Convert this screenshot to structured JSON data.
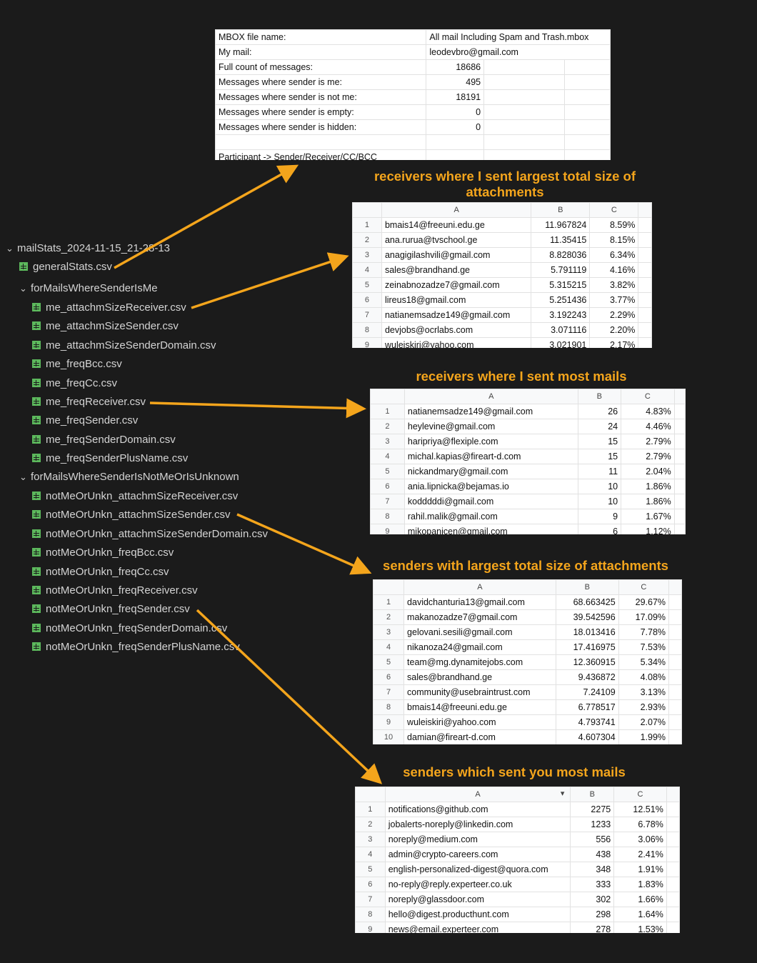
{
  "tree": {
    "root": "mailStats_2024-11-15_21-28-13",
    "root_file": "generalStats.csv",
    "folder1": "forMailsWhereSenderIsMe",
    "folder1_files": [
      "me_attachmSizeReceiver.csv",
      "me_attachmSizeSender.csv",
      "me_attachmSizeSenderDomain.csv",
      "me_freqBcc.csv",
      "me_freqCc.csv",
      "me_freqReceiver.csv",
      "me_freqSender.csv",
      "me_freqSenderDomain.csv",
      "me_freqSenderPlusName.csv"
    ],
    "folder2": "forMailsWhereSenderIsNotMeOrIsUnknown",
    "folder2_files": [
      "notMeOrUnkn_attachmSizeReceiver.csv",
      "notMeOrUnkn_attachmSizeSender.csv",
      "notMeOrUnkn_attachmSizeSenderDomain.csv",
      "notMeOrUnkn_freqBcc.csv",
      "notMeOrUnkn_freqCc.csv",
      "notMeOrUnkn_freqReceiver.csv",
      "notMeOrUnkn_freqSender.csv",
      "notMeOrUnkn_freqSenderDomain.csv",
      "notMeOrUnkn_freqSenderPlusName.csv"
    ]
  },
  "general": {
    "rows": [
      [
        "MBOX file name:",
        "All mail Including Spam and Trash.mbox"
      ],
      [
        "My mail:",
        "leodevbro@gmail.com"
      ],
      [
        "Full count of messages:",
        "18686"
      ],
      [
        "Messages where sender is me:",
        "495"
      ],
      [
        "Messages where sender is not me:",
        "18191"
      ],
      [
        "Messages where sender is empty:",
        "0"
      ],
      [
        "Messages where sender is hidden:",
        "0"
      ],
      [
        "",
        ""
      ],
      [
        "Participant -> Sender/Receiver/CC/BCC",
        ""
      ]
    ]
  },
  "sheets": {
    "s1": {
      "caption": "receivers where I sent largest total size of attachments",
      "headers": [
        "A",
        "B",
        "C"
      ],
      "rows": [
        [
          "1",
          "bmais14@freeuni.edu.ge",
          "11.967824",
          "8.59%"
        ],
        [
          "2",
          "ana.rurua@tvschool.ge",
          "11.35415",
          "8.15%"
        ],
        [
          "3",
          "anagigilashvili@gmail.com",
          "8.828036",
          "6.34%"
        ],
        [
          "4",
          "sales@brandhand.ge",
          "5.791119",
          "4.16%"
        ],
        [
          "5",
          "zeinabnozadze7@gmail.com",
          "5.315215",
          "3.82%"
        ],
        [
          "6",
          "lireus18@gmail.com",
          "5.251436",
          "3.77%"
        ],
        [
          "7",
          "natianemsadze149@gmail.com",
          "3.192243",
          "2.29%"
        ],
        [
          "8",
          "devjobs@ocrlabs.com",
          "3.071116",
          "2.20%"
        ],
        [
          "9",
          "wuleiskiri@yahoo.com",
          "3.021901",
          "2.17%"
        ]
      ]
    },
    "s2": {
      "caption": "receivers where I sent most mails",
      "headers": [
        "A",
        "B",
        "C"
      ],
      "rows": [
        [
          "1",
          "natianemsadze149@gmail.com",
          "26",
          "4.83%"
        ],
        [
          "2",
          "heylevine@gmail.com",
          "24",
          "4.46%"
        ],
        [
          "3",
          "haripriya@flexiple.com",
          "15",
          "2.79%"
        ],
        [
          "4",
          "michal.kapias@fireart-d.com",
          "15",
          "2.79%"
        ],
        [
          "5",
          "nickandmary@gmail.com",
          "11",
          "2.04%"
        ],
        [
          "6",
          "ania.lipnicka@bejamas.io",
          "10",
          "1.86%"
        ],
        [
          "7",
          "kodddddi@gmail.com",
          "10",
          "1.86%"
        ],
        [
          "8",
          "rahil.malik@gmail.com",
          "9",
          "1.67%"
        ],
        [
          "9",
          "mikopanicen@gmail.com",
          "6",
          "1.12%"
        ]
      ]
    },
    "s3": {
      "caption": "senders with largest total size of attachments",
      "headers": [
        "A",
        "B",
        "C"
      ],
      "rows": [
        [
          "1",
          "davidchanturia13@gmail.com",
          "68.663425",
          "29.67%"
        ],
        [
          "2",
          "makanozadze7@gmail.com",
          "39.542596",
          "17.09%"
        ],
        [
          "3",
          "gelovani.sesili@gmail.com",
          "18.013416",
          "7.78%"
        ],
        [
          "4",
          "nikanoza24@gmail.com",
          "17.416975",
          "7.53%"
        ],
        [
          "5",
          "team@mg.dynamitejobs.com",
          "12.360915",
          "5.34%"
        ],
        [
          "6",
          "sales@brandhand.ge",
          "9.436872",
          "4.08%"
        ],
        [
          "7",
          "community@usebraintrust.com",
          "7.24109",
          "3.13%"
        ],
        [
          "8",
          "bmais14@freeuni.edu.ge",
          "6.778517",
          "2.93%"
        ],
        [
          "9",
          "wuleiskiri@yahoo.com",
          "4.793741",
          "2.07%"
        ],
        [
          "10",
          "damian@fireart-d.com",
          "4.607304",
          "1.99%"
        ]
      ]
    },
    "s4": {
      "caption": "senders which sent you most mails",
      "headers": [
        "A",
        "B",
        "C"
      ],
      "rows": [
        [
          "1",
          "notifications@github.com",
          "2275",
          "12.51%"
        ],
        [
          "2",
          "jobalerts-noreply@linkedin.com",
          "1233",
          "6.78%"
        ],
        [
          "3",
          "noreply@medium.com",
          "556",
          "3.06%"
        ],
        [
          "4",
          "admin@crypto-careers.com",
          "438",
          "2.41%"
        ],
        [
          "5",
          "english-personalized-digest@quora.com",
          "348",
          "1.91%"
        ],
        [
          "6",
          "no-reply@reply.experteer.co.uk",
          "333",
          "1.83%"
        ],
        [
          "7",
          "noreply@glassdoor.com",
          "302",
          "1.66%"
        ],
        [
          "8",
          "hello@digest.producthunt.com",
          "298",
          "1.64%"
        ],
        [
          "9",
          "news@email.experteer.com",
          "278",
          "1.53%"
        ]
      ]
    }
  },
  "colors": {
    "accent": "#f4a51c",
    "background": "#1b1b1b",
    "file_icon": "#5cb85c"
  }
}
